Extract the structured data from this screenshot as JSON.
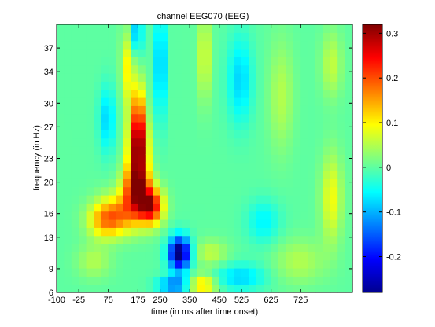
{
  "chart_data": {
    "type": "heatmap",
    "title": "channel EEG070 (EEG)",
    "xlabel": "time (in ms after time onset)",
    "ylabel": "frequency (in Hz)",
    "x_ticks": [
      -100,
      -25,
      75,
      175,
      250,
      350,
      450,
      525,
      625,
      725
    ],
    "y_ticks": [
      6,
      9,
      13,
      16,
      20,
      23,
      27,
      30,
      34,
      37
    ],
    "xlim": [
      -100,
      900
    ],
    "ylim": [
      6,
      40
    ],
    "colorbar": {
      "ticks": [
        "-0.2",
        "-0.1",
        "0",
        "0.1",
        "0.2",
        "0.3"
      ],
      "tick_values": [
        -0.2,
        -0.1,
        0,
        0.1,
        0.2,
        0.3
      ],
      "clim": [
        -0.28,
        0.32
      ],
      "colormap": "jet"
    },
    "grid": false,
    "features": [
      {
        "time": 175,
        "freq": 24,
        "value": 0.3,
        "sx": 22,
        "sy": 3.0
      },
      {
        "time": 170,
        "freq": 19,
        "value": 0.24,
        "sx": 32,
        "sy": 2.2
      },
      {
        "time": 220,
        "freq": 17,
        "value": 0.25,
        "sx": 28,
        "sy": 1.6
      },
      {
        "time": 110,
        "freq": 16,
        "value": 0.14,
        "sx": 55,
        "sy": 1.8
      },
      {
        "time": 60,
        "freq": 15,
        "value": 0.1,
        "sx": 40,
        "sy": 1.5
      },
      {
        "time": 175,
        "freq": 29,
        "value": 0.15,
        "sx": 15,
        "sy": 3.0
      },
      {
        "time": 315,
        "freq": 11,
        "value": -0.3,
        "sx": 26,
        "sy": 1.5
      },
      {
        "time": 300,
        "freq": 7,
        "value": -0.14,
        "sx": 40,
        "sy": 0.8
      },
      {
        "time": 390,
        "freq": 7,
        "value": 0.13,
        "sx": 35,
        "sy": 0.9
      },
      {
        "time": 420,
        "freq": 11,
        "value": 0.06,
        "sx": 40,
        "sy": 1.2
      },
      {
        "time": 520,
        "freq": 8,
        "value": -0.08,
        "sx": 60,
        "sy": 1.2
      },
      {
        "time": 250,
        "freq": 35,
        "value": -0.12,
        "sx": 12,
        "sy": 5.0
      },
      {
        "time": 165,
        "freq": 39,
        "value": -0.1,
        "sx": 18,
        "sy": 2.0
      },
      {
        "time": 140,
        "freq": 35,
        "value": 0.1,
        "sx": 15,
        "sy": 4.0
      },
      {
        "time": 70,
        "freq": 28,
        "value": -0.08,
        "sx": 20,
        "sy": 3.0
      },
      {
        "time": 400,
        "freq": 36,
        "value": 0.08,
        "sx": 15,
        "sy": 4.0
      },
      {
        "time": 520,
        "freq": 33,
        "value": -0.08,
        "sx": 30,
        "sy": 4.0
      },
      {
        "time": 660,
        "freq": 31,
        "value": 0.05,
        "sx": 30,
        "sy": 5.0
      },
      {
        "time": 830,
        "freq": 18,
        "value": 0.09,
        "sx": 25,
        "sy": 4.0
      },
      {
        "time": 830,
        "freq": 35,
        "value": 0.06,
        "sx": 25,
        "sy": 3.0
      },
      {
        "time": 25,
        "freq": 10,
        "value": 0.05,
        "sx": 40,
        "sy": 1.5
      },
      {
        "time": 720,
        "freq": 10,
        "value": 0.05,
        "sx": 60,
        "sy": 2.0
      },
      {
        "time": 600,
        "freq": 15,
        "value": -0.06,
        "sx": 40,
        "sy": 2.0
      }
    ]
  }
}
